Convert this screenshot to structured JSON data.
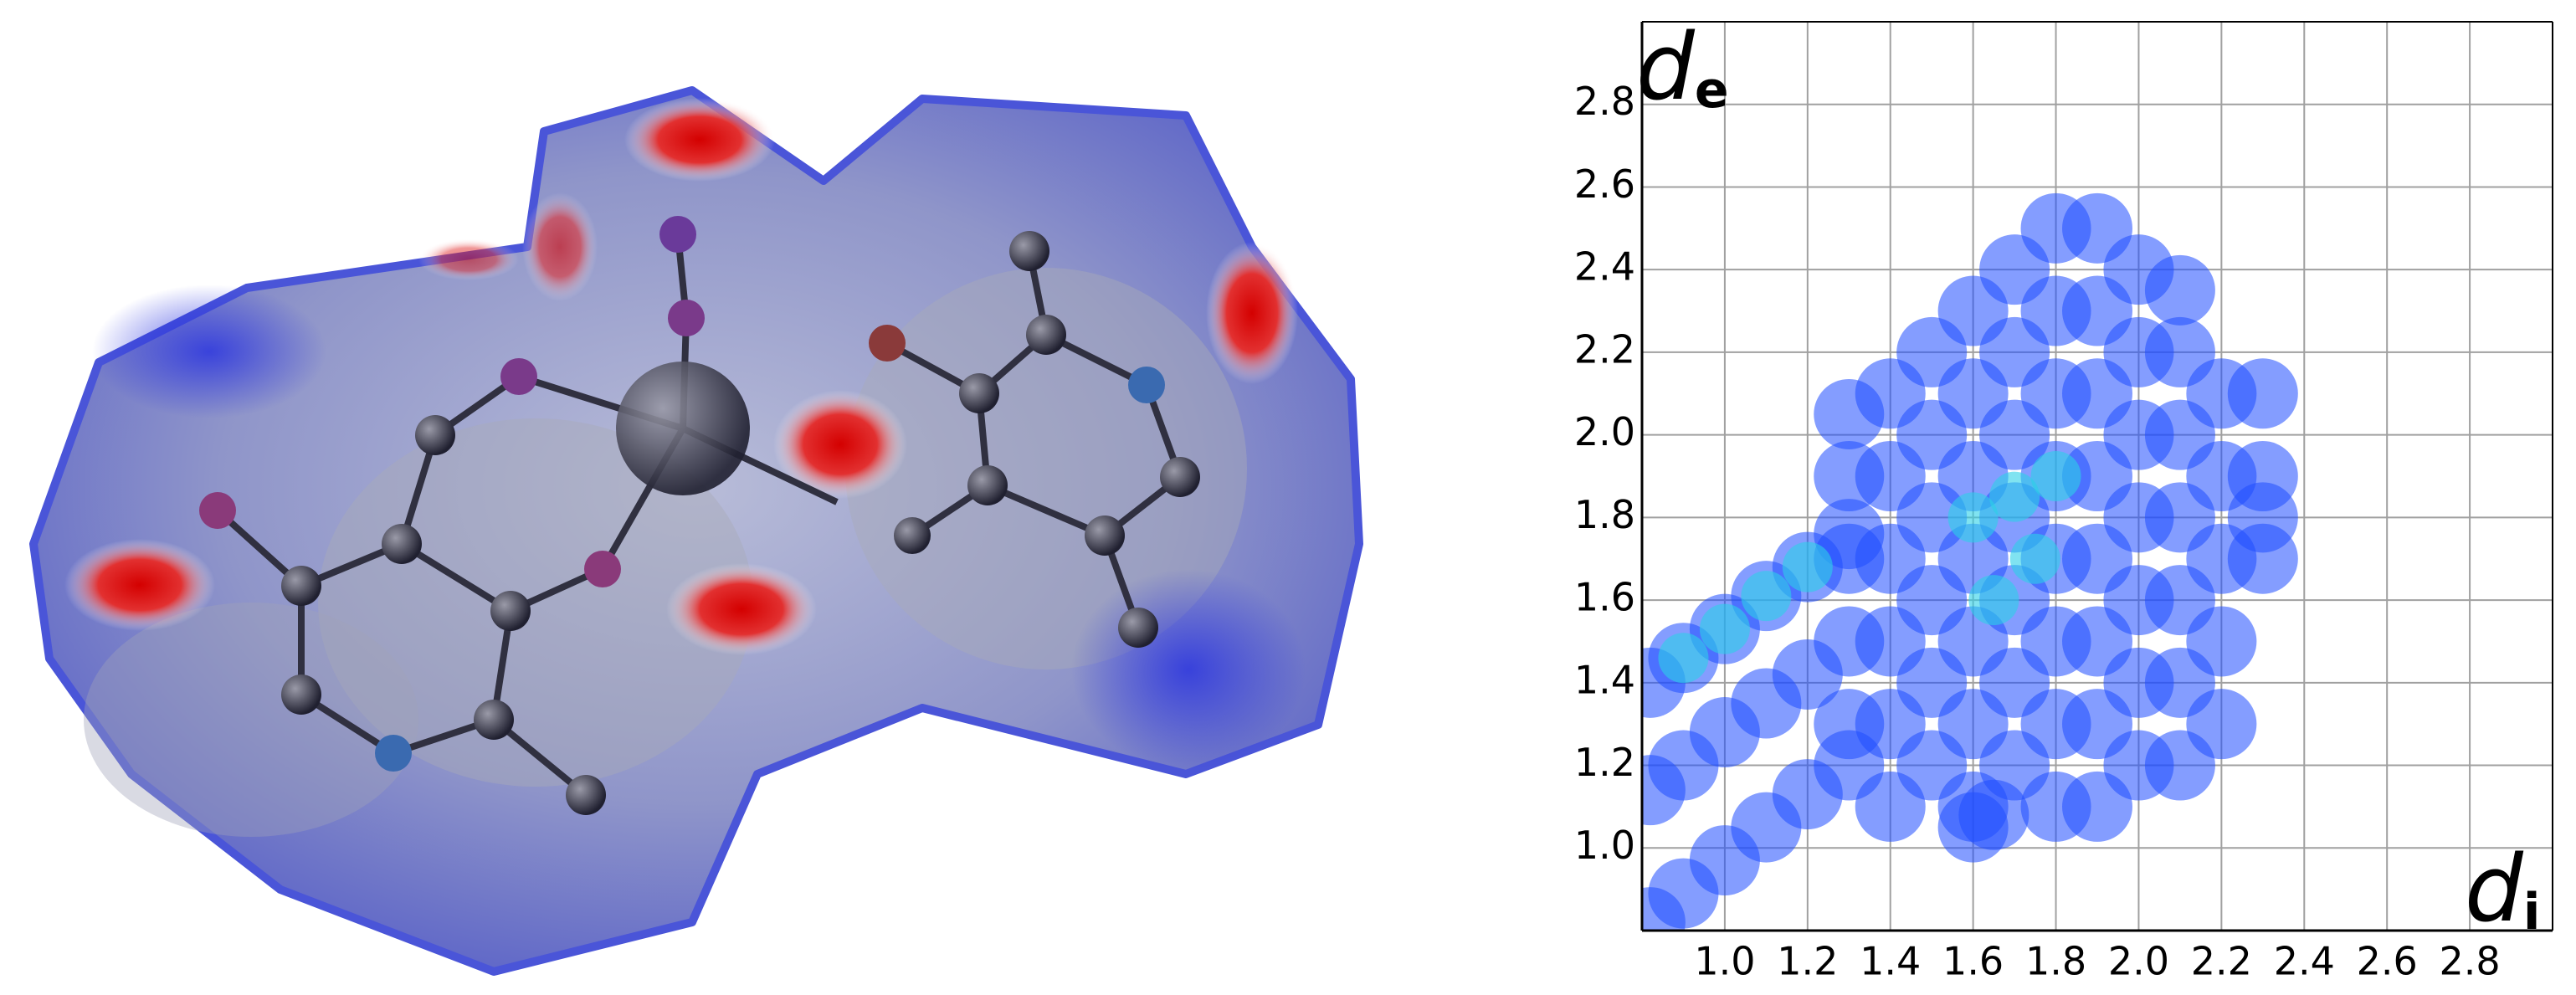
{
  "chart_data": {
    "type": "scatter",
    "xlabel": {
      "symbol": "d",
      "subscript": "i"
    },
    "ylabel": {
      "symbol": "d",
      "subscript": "e"
    },
    "xlim": [
      0.8,
      3.0
    ],
    "ylim": [
      0.8,
      3.0
    ],
    "xticks": [
      {
        "value": 1,
        "label": "1.0"
      },
      1.2,
      1.4,
      1.6,
      1.8,
      {
        "value": 2,
        "label": "2.0"
      },
      2.2,
      2.4,
      2.6,
      2.8
    ],
    "yticks": [
      {
        "value": 1,
        "label": "1.0"
      },
      1.2,
      1.4,
      1.6,
      1.8,
      {
        "value": 2,
        "label": "2.0"
      },
      2.2,
      2.4,
      2.6,
      2.8
    ],
    "grid": true,
    "series": [
      {
        "color": "#1f4dff",
        "x": [
          0.82,
          0.9,
          1.0,
          1.1,
          1.2,
          1.3,
          0.82,
          0.9,
          1.0,
          1.1,
          1.2,
          0.82,
          0.9,
          1.0,
          1.1,
          1.2,
          1.3,
          1.3,
          1.3,
          1.3,
          1.3,
          1.3,
          1.4,
          1.4,
          1.4,
          1.4,
          1.4,
          1.4,
          1.5,
          1.5,
          1.5,
          1.5,
          1.5,
          1.5,
          1.6,
          1.6,
          1.6,
          1.6,
          1.6,
          1.6,
          1.6,
          1.7,
          1.7,
          1.7,
          1.7,
          1.7,
          1.7,
          1.7,
          1.8,
          1.8,
          1.8,
          1.8,
          1.8,
          1.8,
          1.8,
          1.8,
          1.9,
          1.9,
          1.9,
          1.9,
          1.9,
          1.9,
          1.9,
          1.9,
          2.0,
          2.0,
          2.0,
          2.0,
          2.0,
          2.0,
          2.0,
          2.1,
          2.1,
          2.1,
          2.1,
          2.1,
          2.1,
          2.1,
          2.2,
          2.2,
          2.2,
          2.2,
          2.2,
          2.3,
          2.3,
          2.3,
          2.3,
          1.6,
          1.65
        ],
        "values": [
          1.4,
          1.46,
          1.53,
          1.61,
          1.68,
          1.76,
          1.14,
          1.2,
          1.28,
          1.35,
          1.42,
          0.82,
          0.89,
          0.97,
          1.05,
          1.13,
          1.2,
          1.3,
          1.5,
          1.7,
          1.9,
          2.05,
          1.1,
          1.3,
          1.5,
          1.7,
          1.9,
          2.1,
          1.2,
          1.4,
          1.6,
          1.8,
          2.0,
          2.2,
          1.1,
          1.3,
          1.5,
          1.7,
          1.9,
          2.1,
          2.3,
          1.2,
          1.4,
          1.6,
          1.8,
          2.0,
          2.2,
          2.4,
          1.1,
          1.3,
          1.5,
          1.7,
          1.9,
          2.1,
          2.3,
          2.5,
          1.1,
          1.3,
          1.5,
          1.7,
          1.9,
          2.1,
          2.3,
          2.5,
          1.2,
          1.4,
          1.6,
          1.8,
          2.0,
          2.2,
          2.4,
          1.2,
          1.4,
          1.6,
          1.8,
          2.0,
          2.2,
          2.35,
          1.3,
          1.5,
          1.7,
          1.9,
          2.1,
          1.7,
          1.8,
          1.9,
          2.1,
          1.05,
          1.08
        ]
      },
      {
        "color": "#2bd0e8",
        "x": [
          1.6,
          1.7,
          1.75,
          1.65,
          1.8,
          0.9,
          1.0,
          1.1,
          1.2
        ],
        "values": [
          1.8,
          1.85,
          1.7,
          1.6,
          1.9,
          1.46,
          1.53,
          1.61,
          1.68
        ]
      }
    ]
  }
}
